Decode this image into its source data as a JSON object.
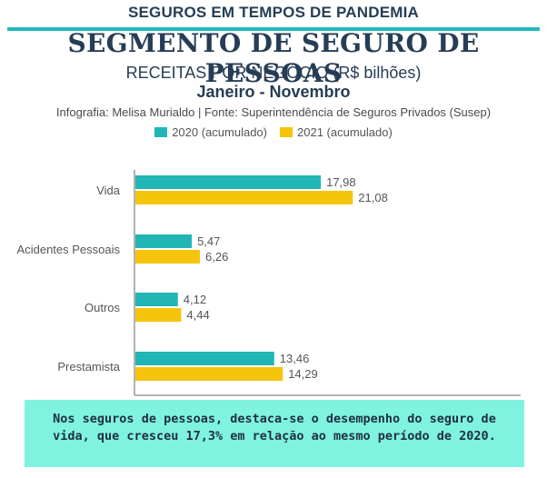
{
  "header": {
    "kicker": "SEGUROS EM TEMPOS DE PANDEMIA",
    "headline": "SEGMENTO DE SEGURO DE PESSOAS",
    "subtitle": "RECEITAS POR NEGÓCIO (R$ bilhões)",
    "period": "Janeiro - Novembro",
    "credit": "Infografia: Melisa Murialdo | Fonte: Superintendência de Seguros Privados (Susep)"
  },
  "colors": {
    "accent": "#22b8bc",
    "title": "#263d56",
    "series_2020": "#22b5b5",
    "series_2021": "#f6c40b",
    "callout_bg": "#7ff2e0"
  },
  "chart_data": {
    "type": "bar",
    "orientation": "horizontal",
    "categories": [
      "Vida",
      "Acidentes Pessoais",
      "Outros",
      "Prestamista"
    ],
    "series": [
      {
        "name": "2020 (acumulado)",
        "values": [
          17.98,
          5.47,
          4.12,
          13.46
        ],
        "labels": [
          "17,98",
          "5,47",
          "4,12",
          "13,46"
        ],
        "color": "#22b5b5"
      },
      {
        "name": "2021 (acumulado)",
        "values": [
          21.08,
          6.26,
          4.44,
          14.29
        ],
        "labels": [
          "21,08",
          "6,26",
          "4,44",
          "14,29"
        ],
        "color": "#f6c40b"
      }
    ],
    "xlim": [
      0,
      37
    ],
    "grid": false,
    "legend": "top-center"
  },
  "callout": {
    "text": "Nos seguros de pessoas, destaca-se o desempenho do seguro de vida, que cresceu 17,3% em relação ao mesmo período de 2020."
  }
}
